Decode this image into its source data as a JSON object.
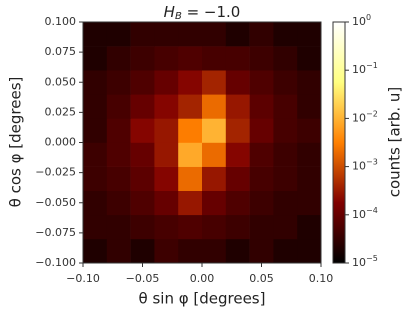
{
  "chart_data": {
    "type": "heatmap",
    "title": {
      "variable": "H",
      "subscript": "B",
      "text": " = −1.0"
    },
    "x_label": "θ sin φ [degrees]",
    "y_label": "θ cos φ [degrees]",
    "colorbar_label": "counts [arb. u]",
    "colormap": "afmhot",
    "color_scale": "log",
    "xlim": [
      -0.1,
      0.1
    ],
    "ylim": [
      -0.1,
      0.1
    ],
    "clim": [
      1e-05,
      1
    ],
    "xticks": [
      {
        "value": -0.1,
        "label": "−0.10"
      },
      {
        "value": -0.05,
        "label": "−0.05"
      },
      {
        "value": 0,
        "label": "0.00"
      },
      {
        "value": 0.05,
        "label": "0.05"
      },
      {
        "value": 0.1,
        "label": "0.10"
      }
    ],
    "yticks": [
      {
        "value": -0.1,
        "label": "−0.100"
      },
      {
        "value": -0.075,
        "label": "−0.075"
      },
      {
        "value": -0.05,
        "label": "−0.050"
      },
      {
        "value": -0.025,
        "label": "−0.025"
      },
      {
        "value": 0,
        "label": "0.000"
      },
      {
        "value": 0.025,
        "label": "0.025"
      },
      {
        "value": 0.05,
        "label": "0.050"
      },
      {
        "value": 0.075,
        "label": "0.075"
      },
      {
        "value": 0.1,
        "label": "0.100"
      }
    ],
    "cticks": [
      {
        "value": 1e-05,
        "label": "10",
        "exponent": "−5"
      },
      {
        "value": 0.0001,
        "label": "10",
        "exponent": "−4"
      },
      {
        "value": 0.001,
        "label": "10",
        "exponent": "−3"
      },
      {
        "value": 0.01,
        "label": "10",
        "exponent": "−2"
      },
      {
        "value": 0.1,
        "label": "10",
        "exponent": "−1"
      },
      {
        "value": 1,
        "label": "10",
        "exponent": "0"
      }
    ],
    "x_bins": [
      -0.1,
      -0.08,
      -0.06,
      -0.04,
      -0.02,
      0,
      0.02,
      0.04,
      0.06,
      0.08,
      0.1
    ],
    "y_bins": [
      -0.1,
      -0.08,
      -0.06,
      -0.04,
      -0.02,
      0,
      0.02,
      0.04,
      0.06,
      0.08,
      0.1
    ],
    "z": [
      [
        2e-05,
        3e-05,
        2e-05,
        4e-05,
        3e-05,
        3e-05,
        2e-05,
        3e-05,
        2e-05,
        2e-05
      ],
      [
        3e-05,
        3e-05,
        4e-05,
        5e-05,
        6e-05,
        5e-05,
        4e-05,
        3e-05,
        3e-05,
        2e-05
      ],
      [
        3e-05,
        4e-05,
        6e-05,
        0.0001,
        0.0003,
        0.0001,
        6e-05,
        4e-05,
        3e-05,
        3e-05
      ],
      [
        4e-05,
        5e-05,
        8e-05,
        0.0002,
        0.002,
        0.0003,
        0.0001,
        5e-05,
        4e-05,
        3e-05
      ],
      [
        4e-05,
        6e-05,
        0.0001,
        0.0003,
        0.008,
        0.002,
        0.0002,
        6e-05,
        4e-05,
        3e-05
      ],
      [
        3e-05,
        6e-05,
        0.0002,
        0.0003,
        0.003,
        0.01,
        0.0004,
        0.0001,
        5e-05,
        4e-05
      ],
      [
        3e-05,
        5e-05,
        0.0001,
        0.0002,
        0.0004,
        0.002,
        0.0003,
        8e-05,
        5e-05,
        3e-05
      ],
      [
        3e-05,
        4e-05,
        6e-05,
        0.0001,
        0.0002,
        0.0004,
        0.0001,
        6e-05,
        4e-05,
        3e-05
      ],
      [
        2e-05,
        3e-05,
        4e-05,
        5e-05,
        6e-05,
        5e-05,
        5e-05,
        4e-05,
        3e-05,
        2e-05
      ],
      [
        2e-05,
        2e-05,
        3e-05,
        3e-05,
        3e-05,
        3e-05,
        2e-05,
        3e-05,
        2e-05,
        2e-05
      ]
    ]
  }
}
